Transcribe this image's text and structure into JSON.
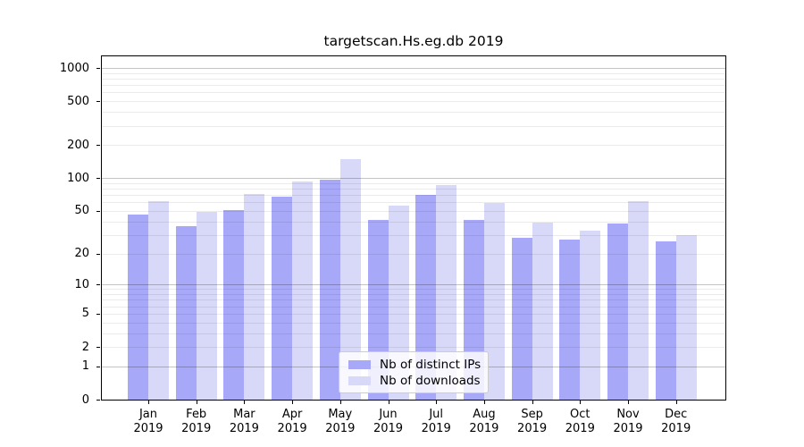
{
  "title": "targetscan.Hs.eg.db 2019",
  "chart_data": {
    "type": "bar",
    "title": "targetscan.Hs.eg.db 2019",
    "xlabel": "",
    "ylabel": "",
    "scale": "log1p",
    "ylim": [
      0,
      1000
    ],
    "yticks": [
      0,
      1,
      2,
      5,
      10,
      20,
      50,
      100,
      200,
      500,
      1000
    ],
    "grid": "horizontal",
    "legend_position": "lower-center",
    "categories": [
      "Jan",
      "Feb",
      "Mar",
      "Apr",
      "May",
      "Jun",
      "Jul",
      "Aug",
      "Sep",
      "Oct",
      "Nov",
      "Dec"
    ],
    "year": "2019",
    "series": [
      {
        "name": "Nb of distinct IPs",
        "color": "#a8a8f8",
        "values": [
          46,
          36,
          51,
          67,
          97,
          41,
          70,
          41,
          28,
          27,
          38,
          26
        ]
      },
      {
        "name": "Nb of downloads",
        "color": "#d8d8f8",
        "values": [
          61,
          49,
          72,
          93,
          150,
          56,
          87,
          59,
          39,
          33,
          62,
          30
        ]
      }
    ],
    "colors": {
      "major_grid": "#c6c6c6",
      "minor_grid": "#eaeaea",
      "axis": "#000000",
      "text": "#000000"
    }
  }
}
